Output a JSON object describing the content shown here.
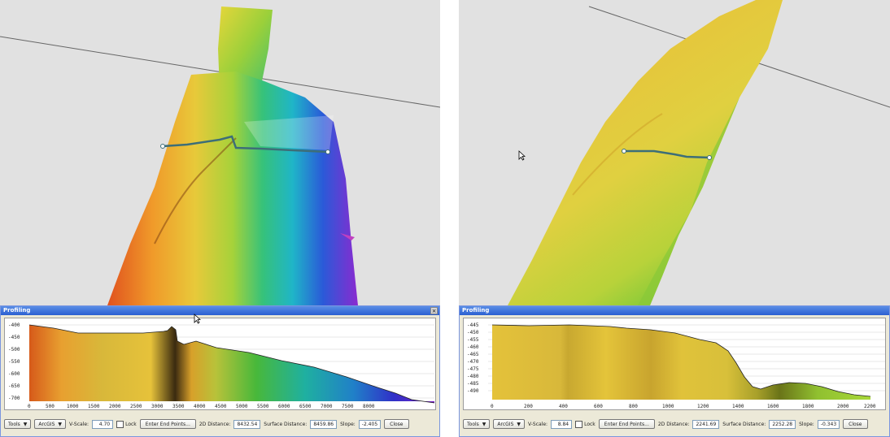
{
  "left": {
    "dialog": {
      "title": "Profiling",
      "close_glyph": "×",
      "y_ticks": [
        "-400",
        "-450",
        "-500",
        "-550",
        "-600",
        "-650",
        "-700"
      ],
      "x_ticks": [
        "0",
        "500",
        "1000",
        "1500",
        "2000",
        "2500",
        "3000",
        "3500",
        "4000",
        "4500",
        "5000",
        "5500",
        "6000",
        "6500",
        "7000",
        "7500",
        "8000"
      ],
      "toolbar": {
        "tools_label": "Tools",
        "arcgis_label": "ArcGIS",
        "vscale_label": "V-Scale:",
        "vscale_value": "4.70",
        "lock_label": "Lock",
        "enter_endpoints_label": "Enter End Points...",
        "distance_2d_label": "2D Distance:",
        "distance_2d_value": "8432.54",
        "surface_distance_label": "Surface Distance:",
        "surface_distance_value": "8459.86",
        "slope_label": "Slope:",
        "slope_value": "-2.405",
        "close_label": "Close"
      }
    }
  },
  "right": {
    "dialog": {
      "title": "Profiling",
      "y_ticks": [
        "-445",
        "-450",
        "-455",
        "-460",
        "-465",
        "-470",
        "-475",
        "-480",
        "-485",
        "-490"
      ],
      "x_ticks": [
        "0",
        "200",
        "400",
        "600",
        "800",
        "1000",
        "1200",
        "1400",
        "1600",
        "1800",
        "2000",
        "2200"
      ],
      "toolbar": {
        "tools_label": "Tools",
        "arcgis_label": "ArcGIS",
        "vscale_label": "V-Scale:",
        "vscale_value": "8.84",
        "lock_label": "Lock",
        "enter_endpoints_label": "Enter End Points...",
        "distance_2d_label": "2D Distance:",
        "distance_2d_value": "2241.69",
        "surface_distance_label": "Surface Distance:",
        "surface_distance_value": "2252.28",
        "slope_label": "Slope:",
        "slope_value": "-0.343",
        "close_label": "Close"
      }
    }
  },
  "icons": {
    "dropdown": "▼",
    "cursor": "mouse-pointer-icon"
  },
  "colors": {
    "scene_background": "#e1e1e1",
    "dialog_background": "#ece9d8",
    "titlebar": "#2b5fd1",
    "profile_line": "#3d6e78"
  }
}
